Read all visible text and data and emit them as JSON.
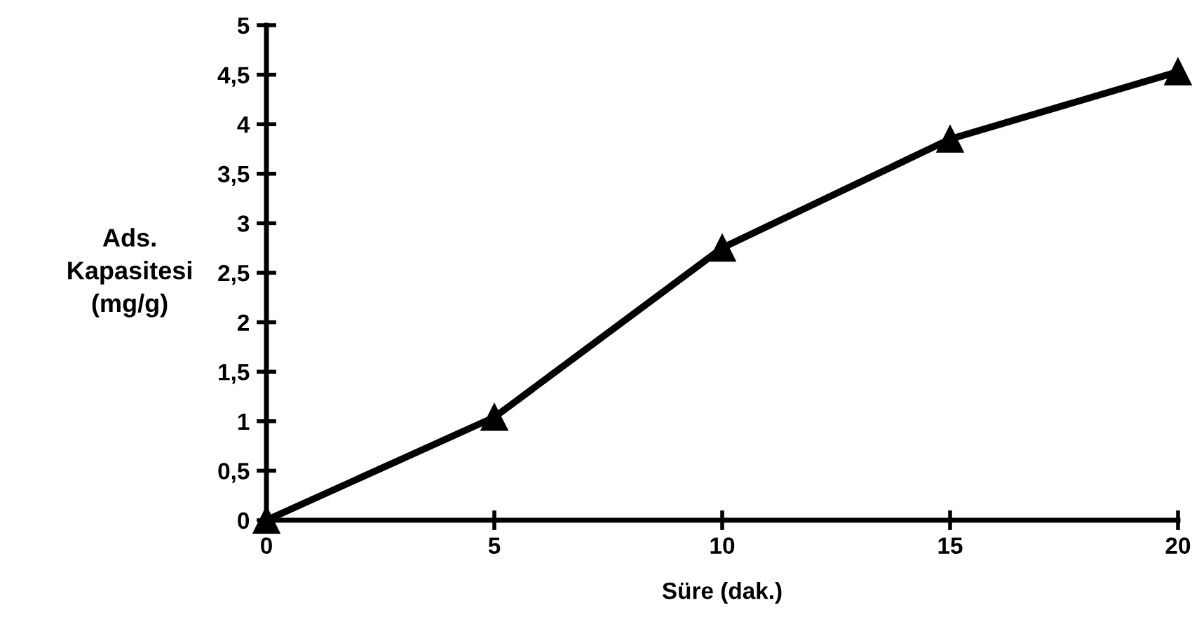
{
  "chart_data": {
    "type": "line",
    "xlabel": "Süre (dak.)",
    "ylabel": "Ads.\nKapasitesi\n(mg/g)",
    "x": [
      0,
      5,
      10,
      15,
      20
    ],
    "series": [
      {
        "color": "#000000",
        "values": [
          0,
          1.04,
          2.75,
          3.85,
          4.53
        ]
      }
    ],
    "xlim": [
      0,
      20
    ],
    "xticks": [
      0,
      5,
      10,
      15,
      20
    ],
    "ylim": [
      0,
      5
    ],
    "yticks": [
      0,
      {
        "value": 0.5,
        "label": "0,5"
      },
      1,
      {
        "value": 1.5,
        "label": "1,5"
      },
      2,
      {
        "value": 2.5,
        "label": "2,5"
      },
      3,
      {
        "value": 3.5,
        "label": "3,5"
      },
      4,
      {
        "value": 4.5,
        "label": "4,5"
      },
      5
    ],
    "marker": "triangle",
    "line_style": "solid",
    "grid": false,
    "legend": false
  }
}
